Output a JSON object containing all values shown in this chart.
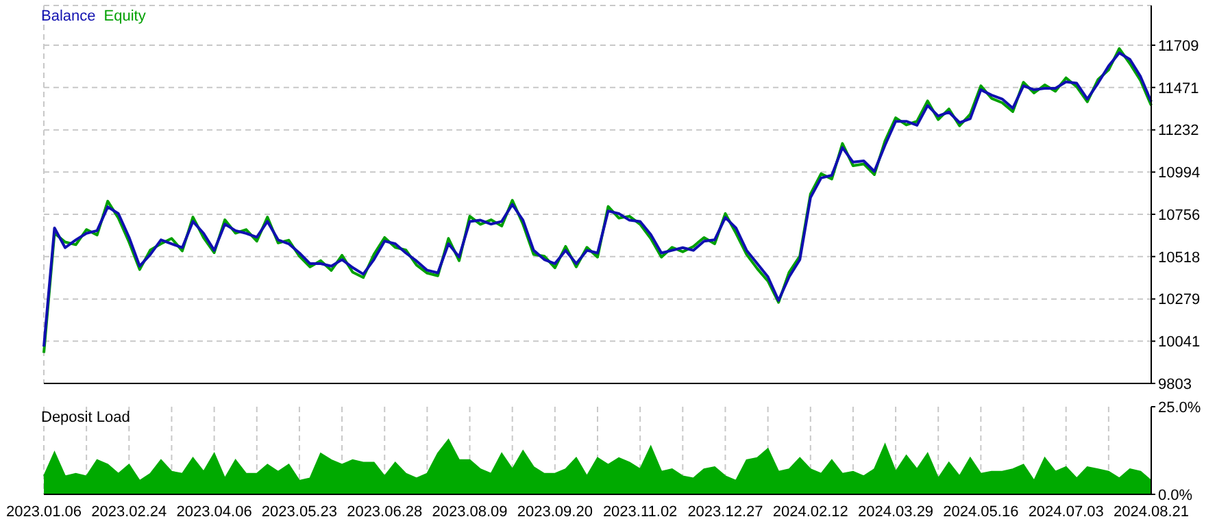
{
  "chart_data": [
    {
      "type": "line",
      "legend": "top left",
      "grid": true,
      "tick_labels": "y",
      "ylim": [
        9803,
        11933
      ],
      "yticks": [
        9803,
        10041,
        10279,
        10518,
        10756,
        10994,
        11232,
        11471,
        11709
      ],
      "categories": [
        "2023.01.06",
        null,
        null,
        null,
        null,
        null,
        null,
        null,
        "2023.02.24",
        null,
        null,
        null,
        null,
        null,
        null,
        null,
        "2023.04.06",
        null,
        null,
        null,
        null,
        null,
        null,
        null,
        "2023.05.23",
        null,
        null,
        null,
        null,
        null,
        null,
        null,
        "2023.06.28",
        null,
        null,
        null,
        null,
        null,
        null,
        null,
        "2023.08.09",
        null,
        null,
        null,
        null,
        null,
        null,
        null,
        "2023.09.20",
        null,
        null,
        null,
        null,
        null,
        null,
        null,
        "2023.11.02",
        null,
        null,
        null,
        null,
        null,
        null,
        null,
        "2023.12.27",
        null,
        null,
        null,
        null,
        null,
        null,
        null,
        "2024.02.12",
        null,
        null,
        null,
        null,
        null,
        null,
        null,
        "2024.03.29",
        null,
        null,
        null,
        null,
        null,
        null,
        null,
        "2024.05.16",
        null,
        null,
        null,
        null,
        null,
        null,
        null,
        "2024.07.03",
        null,
        null,
        null,
        null,
        null,
        null,
        null,
        "2024.08.21"
      ],
      "series": [
        {
          "name": "Balance",
          "color": "#1010b0",
          "values": [
            10011,
            10679,
            10568,
            10612,
            10649,
            10664,
            10798,
            10760,
            10627,
            10464,
            10530,
            10612,
            10590,
            10568,
            10716,
            10649,
            10553,
            10701,
            10664,
            10649,
            10627,
            10716,
            10612,
            10590,
            10538,
            10478,
            10478,
            10464,
            10501,
            10456,
            10419,
            10501,
            10605,
            10590,
            10538,
            10493,
            10441,
            10426,
            10590,
            10516,
            10716,
            10723,
            10701,
            10716,
            10812,
            10723,
            10553,
            10501,
            10478,
            10553,
            10478,
            10553,
            10538,
            10775,
            10760,
            10723,
            10716,
            10642,
            10538,
            10553,
            10568,
            10553,
            10605,
            10612,
            10738,
            10679,
            10553,
            10478,
            10404,
            10271,
            10404,
            10501,
            10850,
            10961,
            10976,
            11132,
            11050,
            11057,
            10998,
            11146,
            11280,
            11280,
            11258,
            11369,
            11310,
            11332,
            11273,
            11295,
            11458,
            11428,
            11406,
            11354,
            11480,
            11458,
            11466,
            11466,
            11503,
            11495,
            11406,
            11495,
            11592,
            11666,
            11629,
            11532,
            11391
          ]
        },
        {
          "name": "Equity",
          "color": "#00a000",
          "values": [
            9975,
            10650,
            10600,
            10585,
            10670,
            10640,
            10830,
            10735,
            10600,
            10445,
            10555,
            10590,
            10620,
            10550,
            10740,
            10625,
            10540,
            10725,
            10650,
            10670,
            10605,
            10740,
            10595,
            10610,
            10520,
            10460,
            10495,
            10440,
            10525,
            10430,
            10400,
            10530,
            10625,
            10570,
            10555,
            10470,
            10425,
            10410,
            10620,
            10495,
            10745,
            10700,
            10725,
            10690,
            10835,
            10700,
            10530,
            10520,
            10455,
            10575,
            10460,
            10570,
            10515,
            10800,
            10735,
            10745,
            10700,
            10620,
            10515,
            10570,
            10545,
            10575,
            10625,
            10590,
            10760,
            10650,
            10530,
            10450,
            10380,
            10260,
            10430,
            10520,
            10870,
            10985,
            10955,
            11155,
            11030,
            11040,
            10980,
            11170,
            11300,
            11260,
            11280,
            11395,
            11290,
            11350,
            11255,
            11320,
            11480,
            11410,
            11385,
            11335,
            11500,
            11440,
            11485,
            11450,
            11525,
            11475,
            11390,
            11515,
            11570,
            11690,
            11605,
            11510,
            11370
          ]
        }
      ]
    },
    {
      "type": "area",
      "title": "Deposit Load",
      "grid": "x",
      "ylim": [
        0,
        25
      ],
      "yticks": [
        {
          "value": 0,
          "label": "0.0%"
        },
        {
          "value": 25,
          "label": "25.0%"
        }
      ],
      "color": "#00aa00",
      "categories": [
        "2023.01.06",
        null,
        null,
        null,
        null,
        null,
        null,
        null,
        "2023.02.24",
        null,
        null,
        null,
        null,
        null,
        null,
        null,
        "2023.04.06",
        null,
        null,
        null,
        null,
        null,
        null,
        null,
        "2023.05.23",
        null,
        null,
        null,
        null,
        null,
        null,
        null,
        "2023.06.28",
        null,
        null,
        null,
        null,
        null,
        null,
        null,
        "2023.08.09",
        null,
        null,
        null,
        null,
        null,
        null,
        null,
        "2023.09.20",
        null,
        null,
        null,
        null,
        null,
        null,
        null,
        "2023.11.02",
        null,
        null,
        null,
        null,
        null,
        null,
        null,
        "2023.12.27",
        null,
        null,
        null,
        null,
        null,
        null,
        null,
        "2024.02.12",
        null,
        null,
        null,
        null,
        null,
        null,
        null,
        "2024.03.29",
        null,
        null,
        null,
        null,
        null,
        null,
        null,
        "2024.05.16",
        null,
        null,
        null,
        null,
        null,
        null,
        null,
        "2024.07.03",
        null,
        null,
        null,
        null,
        null,
        null,
        null,
        "2024.08.21"
      ],
      "values": [
        5.2,
        12,
        5.2,
        5.9,
        5.2,
        9.8,
        8.5,
        5.9,
        8.5,
        3.9,
        5.9,
        9.8,
        6.5,
        5.9,
        10.4,
        6.5,
        11.7,
        4.6,
        9.8,
        5.9,
        5.9,
        8.5,
        6.5,
        8.5,
        3.9,
        4.6,
        11.7,
        9.8,
        8.5,
        9.8,
        9.1,
        9.1,
        5.2,
        9.1,
        5.9,
        4.6,
        5.9,
        11.7,
        15.6,
        9.8,
        9.8,
        7.2,
        5.9,
        11.7,
        7.2,
        12.4,
        7.8,
        5.9,
        5.9,
        7.2,
        10.4,
        5.2,
        10.4,
        8.5,
        10.4,
        9.1,
        7.2,
        13.7,
        6.5,
        7.2,
        5.2,
        4.6,
        7.2,
        7.8,
        5.2,
        3.9,
        9.8,
        10.4,
        13,
        6.5,
        7.2,
        10.4,
        7.2,
        5.9,
        9.8,
        5.9,
        6.5,
        5.2,
        7.2,
        14.3,
        6.5,
        11.1,
        7.2,
        11.7,
        4.6,
        9.1,
        5.2,
        10.4,
        5.9,
        6.5,
        6.5,
        7.2,
        8.5,
        3.9,
        10.4,
        6.5,
        7.8,
        4.6,
        7.8,
        7.2,
        6.5,
        4.6,
        7.2,
        6.5,
        3.9
      ]
    }
  ]
}
